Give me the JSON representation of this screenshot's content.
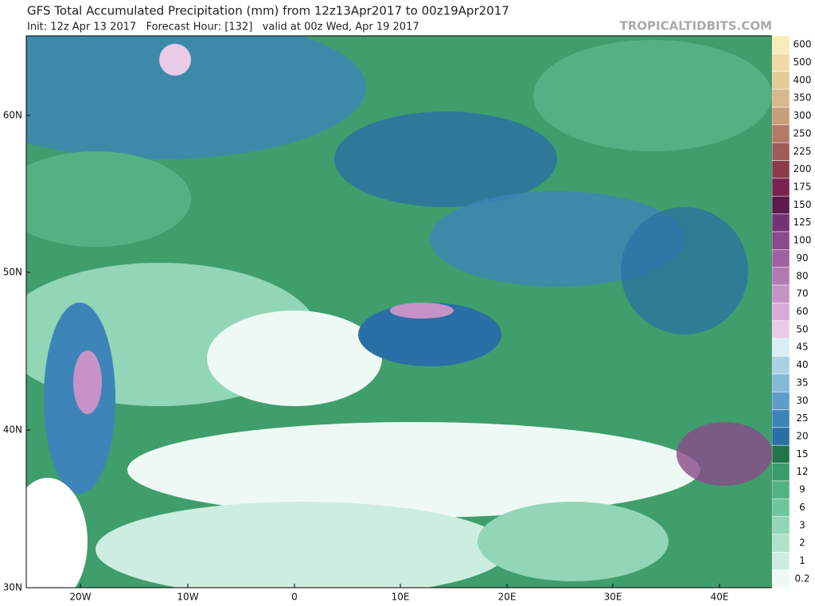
{
  "header": {
    "title": "GFS Total Accumulated Precipitation (mm) from 12z13Apr2017 to 00z19Apr2017",
    "subtitle": "Init: 12z Apr 13 2017   Forecast Hour: [132]   valid at 00z Wed, Apr 19 2017",
    "site": "TROPICALTIDBITS.COM"
  },
  "map": {
    "lat_labels": [
      "60N",
      "50N",
      "40N",
      "30N"
    ],
    "lon_labels": [
      "20W",
      "10W",
      "0",
      "10E",
      "20E",
      "30E",
      "40E"
    ]
  },
  "colorbar": {
    "levels": [
      0.2,
      1,
      2,
      3,
      6,
      9,
      12,
      15,
      20,
      25,
      30,
      35,
      40,
      45,
      50,
      60,
      70,
      80,
      90,
      100,
      125,
      150,
      175,
      200,
      225,
      250,
      300,
      350,
      400,
      500,
      600
    ],
    "colors": [
      "#eef9f4",
      "#cdeedf",
      "#afe2ca",
      "#91d6b6",
      "#6fc69d",
      "#52b283",
      "#3a9a6a",
      "#22754b",
      "#2a6fa6",
      "#3d84b8",
      "#5c9dc9",
      "#85b9d8",
      "#aad1e6",
      "#d9eef5",
      "#e9cbe8",
      "#d9aad8",
      "#c792c8",
      "#b379b3",
      "#9f62a0",
      "#8a4a8b",
      "#743275",
      "#5c1a4c",
      "#7a2350",
      "#8c3b4b",
      "#a05b5b",
      "#b47a68",
      "#c89f7b",
      "#d8b88b",
      "#e6cb98",
      "#f0dba8",
      "#f8ecb8"
    ]
  }
}
